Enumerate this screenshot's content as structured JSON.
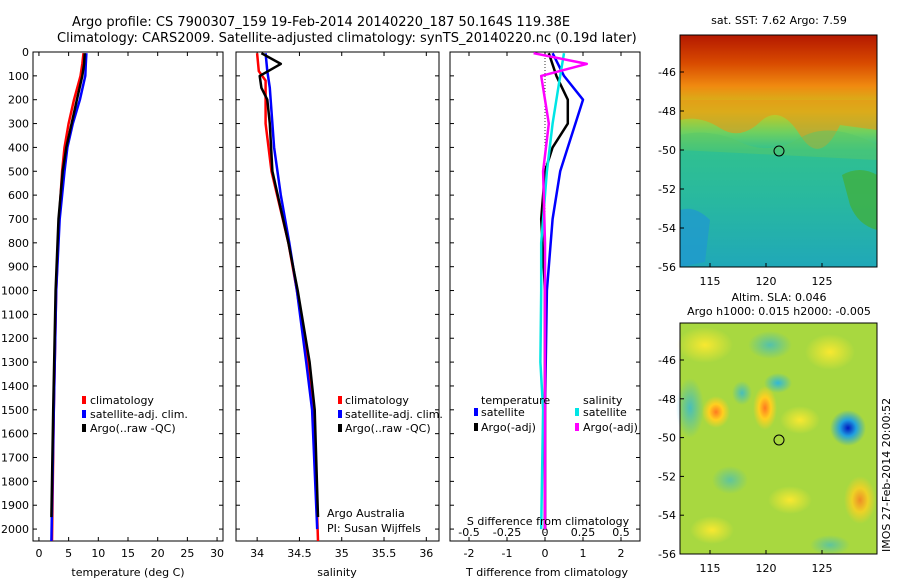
{
  "header": {
    "line1": "Argo profile: CS 7900307_159 19-Feb-2014 20140220_187 50.164S 119.38E",
    "line2": "Climatology: CARS2009. Satellite-adjusted climatology: synTS_20140220.nc (0.19d later)"
  },
  "colors": {
    "climatology": "#ff0000",
    "satellite": "#0000ff",
    "argo": "#000000",
    "satellite_salinity": "#00e5e5",
    "argo_salinity_diff": "#ff00ff"
  },
  "depth_axis": {
    "ticks": [
      0,
      100,
      200,
      300,
      400,
      500,
      600,
      700,
      800,
      900,
      1000,
      1100,
      1200,
      1300,
      1400,
      1500,
      1600,
      1700,
      1800,
      1900,
      2000
    ]
  },
  "chart_data": [
    {
      "type": "line",
      "xlabel": "temperature (deg C)",
      "xlim": [
        -1,
        31
      ],
      "ylim": [
        0,
        2050
      ],
      "xticks": [
        0,
        5,
        10,
        15,
        20,
        25,
        30
      ],
      "legend": [
        "climatology",
        "satellite-adj. clim.",
        "Argo(..raw -QC)"
      ],
      "series": [
        {
          "name": "climatology",
          "color": "#ff0000",
          "depth": [
            5,
            50,
            100,
            200,
            300,
            400,
            500,
            700,
            1000,
            1500,
            2050
          ],
          "values": [
            7.5,
            7.3,
            7.0,
            5.9,
            5.0,
            4.3,
            3.9,
            3.4,
            2.9,
            2.5,
            2.2
          ]
        },
        {
          "name": "satellite-adj. clim.",
          "color": "#0000ff",
          "depth": [
            5,
            50,
            100,
            200,
            300,
            400,
            500,
            700,
            1000,
            1500,
            2050
          ],
          "values": [
            8.0,
            7.9,
            7.8,
            6.9,
            5.7,
            4.8,
            4.3,
            3.5,
            2.9,
            2.5,
            2.1
          ]
        },
        {
          "name": "Argo(..raw -QC)",
          "color": "#000000",
          "depth": [
            5,
            50,
            100,
            200,
            300,
            400,
            500,
            700,
            1000,
            1500,
            1950
          ],
          "values": [
            7.7,
            7.6,
            7.3,
            6.4,
            5.5,
            4.6,
            4.0,
            3.3,
            2.8,
            2.4,
            2.1
          ]
        }
      ]
    },
    {
      "type": "line",
      "xlabel": "salinity",
      "xlim": [
        33.75,
        36.15
      ],
      "ylim": [
        0,
        2050
      ],
      "xticks": [
        34,
        34.5,
        35,
        35.5,
        36
      ],
      "legend": [
        "climatology",
        "satellite-adj. clim.",
        "Argo(..raw -QC)"
      ],
      "annotation": [
        "Argo Australia",
        "PI: Susan Wijffels"
      ],
      "series": [
        {
          "name": "climatology",
          "color": "#ff0000",
          "depth": [
            5,
            80,
            120,
            300,
            500,
            800,
            1000,
            1300,
            1500,
            2050
          ],
          "values": [
            34.0,
            34.02,
            34.1,
            34.1,
            34.17,
            34.37,
            34.47,
            34.6,
            34.67,
            34.72
          ]
        },
        {
          "name": "satellite-adj. clim.",
          "color": "#0000ff",
          "depth": [
            5,
            80,
            150,
            400,
            600,
            800,
            1000,
            1300,
            1500,
            2000
          ],
          "values": [
            34.1,
            34.12,
            34.15,
            34.2,
            34.28,
            34.38,
            34.47,
            34.58,
            34.65,
            34.71
          ]
        },
        {
          "name": "Argo(..raw -QC)",
          "color": "#000000",
          "depth": [
            5,
            50,
            100,
            150,
            200,
            300,
            500,
            800,
            1000,
            1300,
            1500,
            1950
          ],
          "values": [
            34.05,
            34.28,
            34.03,
            34.05,
            34.12,
            34.15,
            34.18,
            34.37,
            34.48,
            34.62,
            34.68,
            34.72
          ]
        }
      ]
    },
    {
      "type": "line",
      "xlabel": "T difference from climatology",
      "xlabel_top": "S difference from climatology",
      "xlim": [
        -2.5,
        2.5
      ],
      "ylim": [
        0,
        2050
      ],
      "xticks": [
        -2,
        -1,
        0,
        1,
        2
      ],
      "xticks_top": [
        "-0.5",
        "-0.25",
        "0",
        "0.25",
        "0.5"
      ],
      "legend_titles": [
        "temperature",
        "salinity"
      ],
      "legend": [
        "satellite",
        "Argo(-adj)",
        "satellite",
        "Argo(-adj)"
      ],
      "series": [
        {
          "name": "temperature satellite",
          "color": "#0000ff",
          "depth": [
            5,
            100,
            200,
            300,
            400,
            500,
            700,
            1000,
            1500,
            2000
          ],
          "values": [
            0.2,
            0.5,
            1.0,
            0.8,
            0.6,
            0.4,
            0.2,
            0.05,
            0.0,
            0.0
          ]
        },
        {
          "name": "temperature Argo(-adj)",
          "color": "#000000",
          "depth": [
            5,
            100,
            200,
            300,
            400,
            500,
            700,
            1000,
            1500,
            2000
          ],
          "values": [
            0.1,
            0.3,
            0.6,
            0.6,
            0.2,
            0.0,
            -0.1,
            0.0,
            0.0,
            0.0
          ]
        },
        {
          "name": "salinity satellite",
          "color": "#00e5e5",
          "depth": [
            5,
            100,
            200,
            300,
            500,
            800,
            1000,
            1300,
            1500,
            2000
          ],
          "values": [
            0.5,
            0.4,
            0.3,
            0.2,
            0.05,
            -0.1,
            -0.1,
            -0.12,
            -0.05,
            -0.1
          ]
        },
        {
          "name": "salinity Argo(-adj)",
          "color": "#ff00ff",
          "depth": [
            5,
            50,
            100,
            200,
            300,
            500,
            800,
            1000,
            1500,
            2000
          ],
          "values": [
            -0.3,
            1.1,
            -0.1,
            0.0,
            0.1,
            -0.05,
            0.0,
            0.0,
            0.0,
            0.0
          ]
        }
      ]
    },
    {
      "type": "heatmap",
      "title": "sat. SST: 7.62  Argo: 7.59",
      "xticks": [
        "115",
        "120",
        "125"
      ],
      "yticks": [
        "-46",
        "-48",
        "-50",
        "-52",
        "-54",
        "-56"
      ]
    },
    {
      "type": "heatmap",
      "title_line1": "Altim. SLA: 0.046",
      "title_line2": "Argo h1000: 0.015  h2000: -0.005",
      "xticks": [
        "115",
        "120",
        "125"
      ],
      "yticks": [
        "-46",
        "-48",
        "-50",
        "-52",
        "-54",
        "-56"
      ]
    }
  ],
  "footer_stamp": "IMOS 27-Feb-2014 20:00:52"
}
